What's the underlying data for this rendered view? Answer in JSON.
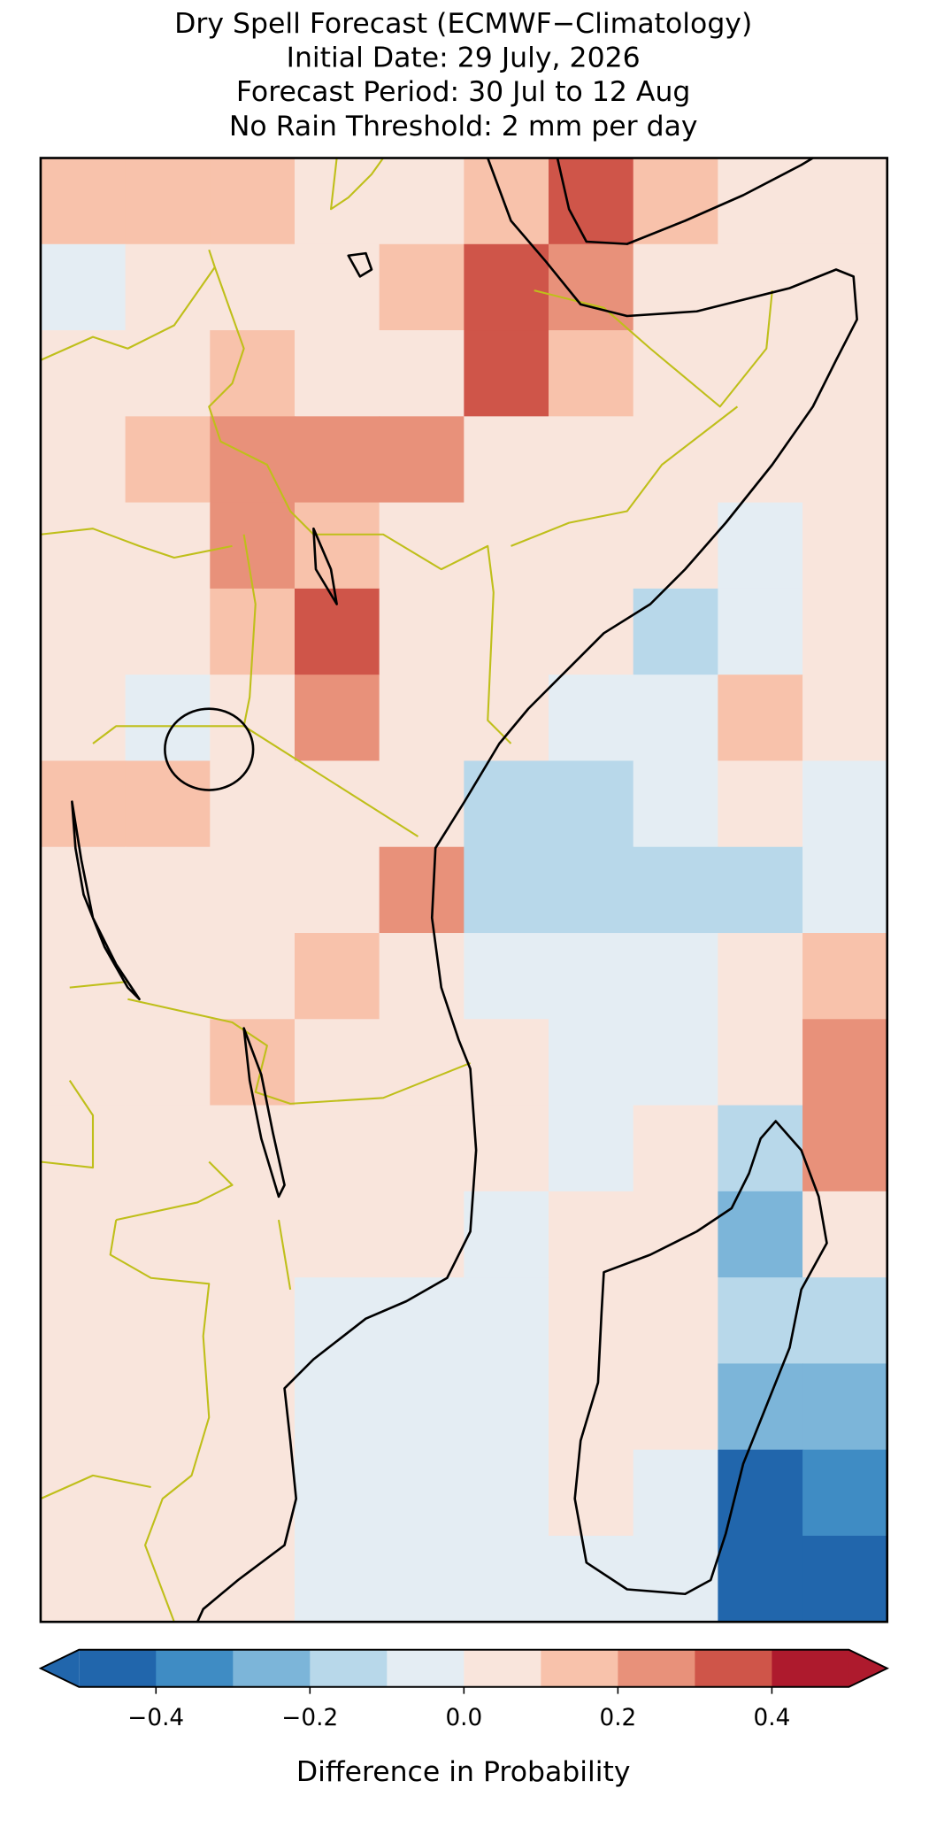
{
  "chart_data": {
    "type": "heatmap",
    "title": [
      "Dry Spell Forecast (ECMWF−Climatology)",
      "Initial Date: 29 July, 2026",
      "Forecast Period: 30 Jul to 12 Aug",
      "No Rain Threshold: 2 mm per day"
    ],
    "values": [
      [
        0.15,
        0.1,
        0.1,
        0.05,
        0.05,
        0.15,
        0.35,
        0.15,
        0.05,
        0.05
      ],
      [
        -0.05,
        0.05,
        0.05,
        0.05,
        0.15,
        0.35,
        0.25,
        0.05,
        0.05,
        0.05
      ],
      [
        0.05,
        0.05,
        0.15,
        0.05,
        0.05,
        0.35,
        0.15,
        0.05,
        0.05,
        0.05
      ],
      [
        0.05,
        0.15,
        0.25,
        0.25,
        0.25,
        0.05,
        0.05,
        0.05,
        0.05,
        0.05
      ],
      [
        0.05,
        0.05,
        0.25,
        0.15,
        0.05,
        0.05,
        0.05,
        0.05,
        -0.05,
        0.05
      ],
      [
        0.05,
        0.05,
        0.15,
        0.35,
        0.05,
        0.05,
        0.05,
        -0.15,
        -0.05,
        0.05
      ],
      [
        0.05,
        -0.05,
        0.05,
        0.25,
        0.05,
        0.05,
        -0.05,
        -0.05,
        0.15,
        0.05
      ],
      [
        0.15,
        0.15,
        0.05,
        0.05,
        0.05,
        -0.15,
        -0.15,
        -0.05,
        0.05,
        -0.05
      ],
      [
        0.05,
        0.05,
        0.05,
        0.05,
        0.25,
        -0.15,
        -0.15,
        -0.15,
        -0.15,
        -0.05
      ],
      [
        0.05,
        0.05,
        0.05,
        0.15,
        0.05,
        -0.05,
        -0.05,
        -0.05,
        0.05,
        0.15
      ],
      [
        0.05,
        0.05,
        0.15,
        0.05,
        0.05,
        0.05,
        -0.05,
        -0.05,
        0.05,
        0.25
      ],
      [
        0.05,
        0.05,
        0.05,
        0.05,
        0.05,
        0.05,
        -0.05,
        0.05,
        -0.15,
        0.25
      ],
      [
        0.05,
        0.05,
        0.05,
        0.05,
        0.05,
        -0.05,
        0.05,
        0.05,
        -0.25,
        0.05
      ],
      [
        0.05,
        0.05,
        0.05,
        -0.05,
        -0.05,
        -0.05,
        0.05,
        0.05,
        -0.15,
        -0.15
      ],
      [
        0.05,
        0.05,
        0.05,
        -0.05,
        -0.05,
        -0.05,
        0.05,
        0.05,
        -0.25,
        -0.25
      ],
      [
        0.05,
        0.05,
        0.05,
        -0.05,
        -0.05,
        -0.05,
        0.05,
        -0.05,
        -0.45,
        -0.35
      ],
      [
        0.05,
        0.05,
        0.05,
        -0.05,
        -0.05,
        -0.05,
        -0.05,
        -0.05,
        -0.45,
        -0.45
      ]
    ],
    "colorbar": {
      "label": "Difference in Probability",
      "levels": [
        -0.5,
        -0.4,
        -0.3,
        -0.2,
        -0.1,
        0,
        0.1,
        0.2,
        0.3,
        0.4,
        0.5
      ],
      "colors": [
        "#2166ac",
        "#3f8cc4",
        "#7cb5d9",
        "#b8d8ea",
        "#e4edf3",
        "#f9e5dc",
        "#f8c2ab",
        "#e8917a",
        "#cf5549",
        "#ae1a2d"
      ],
      "extend": "both",
      "ticks": [
        {
          "value": -0.4,
          "label": "−0.4"
        },
        {
          "value": -0.2,
          "label": "−0.2"
        },
        {
          "value": 0,
          "label": "0.0"
        },
        0.2,
        0.4
      ]
    }
  }
}
